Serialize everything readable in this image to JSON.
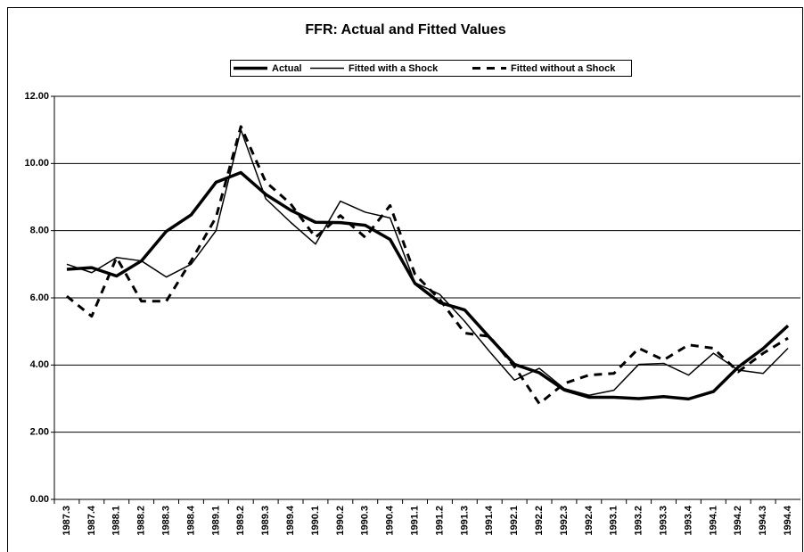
{
  "chart_data": {
    "type": "line",
    "title": "FFR: Actual and Fitted Values",
    "categories": [
      "1987.3",
      "1987.4",
      "1988.1",
      "1988.2",
      "1988.3",
      "1988.4",
      "1989.1",
      "1989.2",
      "1989.3",
      "1989.4",
      "1990.1",
      "1990.2",
      "1990.3",
      "1990.4",
      "1991.1",
      "1991.2",
      "1991.3",
      "1991.4",
      "1992.1",
      "1992.2",
      "1992.3",
      "1992.4",
      "1993.1",
      "1993.2",
      "1993.3",
      "1993.4",
      "1994.1",
      "1994.2",
      "1994.3",
      "1994.4"
    ],
    "series": [
      {
        "name": "Actual",
        "color": "#000000",
        "style": "thick",
        "values": [
          6.85,
          6.9,
          6.65,
          7.1,
          7.98,
          8.47,
          9.44,
          9.73,
          9.08,
          8.61,
          8.25,
          8.24,
          8.16,
          7.74,
          6.43,
          5.86,
          5.64,
          4.82,
          4.02,
          3.77,
          3.26,
          3.04,
          3.04,
          3.0,
          3.06,
          2.99,
          3.21,
          3.94,
          4.49,
          5.17
        ]
      },
      {
        "name": "Fitted with a Shock",
        "color": "#000000",
        "style": "thin",
        "values": [
          7.0,
          6.75,
          7.2,
          7.1,
          6.62,
          7.0,
          8.0,
          11.0,
          8.95,
          8.25,
          7.6,
          8.88,
          8.55,
          8.38,
          6.45,
          6.1,
          5.3,
          4.4,
          3.55,
          3.9,
          3.3,
          3.1,
          3.25,
          4.02,
          4.05,
          3.7,
          4.35,
          3.85,
          3.75,
          4.5
        ]
      },
      {
        "name": "Fitted without a Shock",
        "color": "#000000",
        "style": "dashed",
        "values": [
          6.05,
          5.45,
          7.2,
          5.9,
          5.9,
          7.1,
          8.4,
          11.1,
          9.45,
          8.8,
          7.8,
          8.45,
          7.8,
          8.75,
          6.7,
          5.95,
          4.95,
          4.85,
          3.95,
          2.85,
          3.45,
          3.7,
          3.75,
          4.5,
          4.15,
          4.6,
          4.5,
          3.8,
          4.35,
          4.8
        ]
      }
    ],
    "ylim": [
      0,
      12
    ],
    "yticks": [
      {
        "value": 0,
        "label": "0.00"
      },
      {
        "value": 2,
        "label": "2.00"
      },
      {
        "value": 4,
        "label": "4.00"
      },
      {
        "value": 6,
        "label": "6.00"
      },
      {
        "value": 8,
        "label": "8.00"
      },
      {
        "value": 10,
        "label": "10.00"
      },
      {
        "value": 12,
        "label": "12.00"
      }
    ],
    "grid": true,
    "legend": "top"
  }
}
